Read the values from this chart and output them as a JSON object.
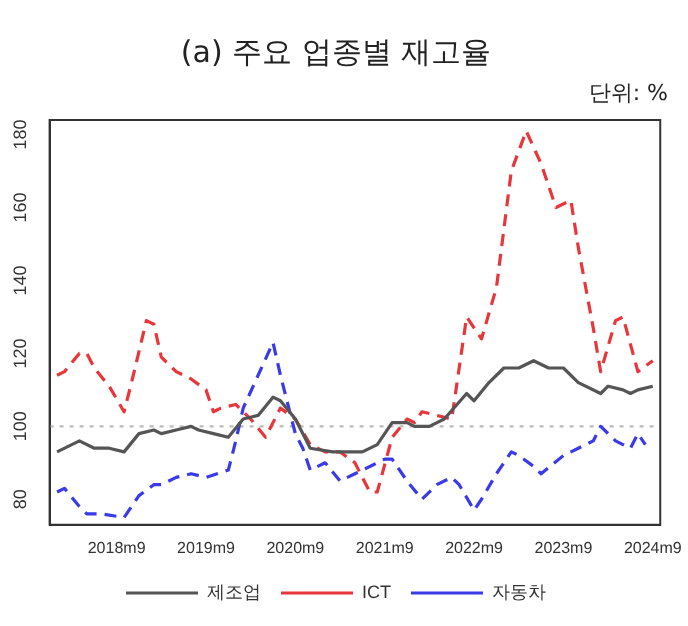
{
  "chart_data": {
    "type": "line",
    "title": "(a) 주요 업종별 재고율",
    "annotations": [
      "단위: %"
    ],
    "xlim": [
      "2017-12",
      "2024-10"
    ],
    "xticks": [
      {
        "value": "2018-09",
        "label": "2018m9"
      },
      {
        "value": "2019-09",
        "label": "2019m9"
      },
      {
        "value": "2020-09",
        "label": "2020m9"
      },
      {
        "value": "2021-09",
        "label": "2021m9"
      },
      {
        "value": "2022-09",
        "label": "2022m9"
      },
      {
        "value": "2023-09",
        "label": "2023m9"
      },
      {
        "value": "2024-09",
        "label": "2024m9"
      }
    ],
    "ylim": [
      73,
      184
    ],
    "yticks": [
      80,
      100,
      120,
      140,
      160,
      180
    ],
    "grid": false,
    "legend": "bottom",
    "marker": "none",
    "ref_lines": [
      {
        "axis": "y",
        "value": 100,
        "color": "#bbbbbb",
        "line_style": "dotted"
      }
    ],
    "series": [
      {
        "name": "제조업",
        "color": "#555555",
        "line_style": "solid",
        "x": [
          "2018-01",
          "2018-04",
          "2018-06",
          "2018-08",
          "2018-10",
          "2018-12",
          "2019-02",
          "2019-03",
          "2019-05",
          "2019-07",
          "2019-08",
          "2019-10",
          "2019-12",
          "2020-02",
          "2020-04",
          "2020-06",
          "2020-07",
          "2020-09",
          "2020-11",
          "2021-02",
          "2021-04",
          "2021-06",
          "2021-08",
          "2021-10",
          "2021-12",
          "2022-01",
          "2022-03",
          "2022-05",
          "2022-08",
          "2022-09",
          "2022-11",
          "2023-01",
          "2023-03",
          "2023-05",
          "2023-07",
          "2023-09",
          "2023-11",
          "2024-02",
          "2024-03",
          "2024-05",
          "2024-06",
          "2024-07",
          "2024-09"
        ],
        "values": [
          93,
          96,
          94,
          94,
          93,
          98,
          99,
          98,
          99,
          100,
          99,
          98,
          97,
          102,
          103,
          108,
          107,
          102,
          94,
          93,
          93,
          93,
          95,
          101,
          101,
          100,
          100,
          102,
          109,
          107,
          112,
          116,
          116,
          118,
          116,
          116,
          112,
          109,
          111,
          110,
          109,
          110,
          111
        ]
      },
      {
        "name": "ICT",
        "color": "#e8363a",
        "line_style": "dashed",
        "x": [
          "2018-01",
          "2018-02",
          "2018-04",
          "2018-05",
          "2018-06",
          "2018-08",
          "2018-10",
          "2018-11",
          "2019-01",
          "2019-02",
          "2019-03",
          "2019-05",
          "2019-07",
          "2019-09",
          "2019-10",
          "2019-11",
          "2020-01",
          "2020-03",
          "2020-05",
          "2020-07",
          "2020-09",
          "2020-11",
          "2021-01",
          "2021-03",
          "2021-05",
          "2021-07",
          "2021-08",
          "2021-10",
          "2021-12",
          "2022-01",
          "2022-02",
          "2022-04",
          "2022-06",
          "2022-08",
          "2022-10",
          "2022-12",
          "2023-02",
          "2023-04",
          "2023-06",
          "2023-08",
          "2023-10",
          "2023-11",
          "2024-01",
          "2024-02",
          "2024-04",
          "2024-05",
          "2024-07",
          "2024-09"
        ],
        "values": [
          114,
          115,
          120,
          120,
          116,
          111,
          104,
          112,
          129,
          128,
          119,
          115,
          113,
          110,
          104,
          105,
          106,
          102,
          97,
          105,
          102,
          95,
          93,
          93,
          90,
          82,
          82,
          97,
          102,
          101,
          104,
          103,
          102,
          130,
          124,
          138,
          170,
          181,
          172,
          160,
          162,
          149,
          127,
          115,
          129,
          130,
          115,
          118
        ]
      },
      {
        "name": "자동차",
        "color": "#3a3ae8",
        "line_style": "dashed",
        "x": [
          "2018-01",
          "2018-02",
          "2018-04",
          "2018-05",
          "2018-07",
          "2018-10",
          "2018-12",
          "2019-02",
          "2019-03",
          "2019-05",
          "2019-07",
          "2019-09",
          "2019-12",
          "2020-01",
          "2020-02",
          "2020-04",
          "2020-06",
          "2020-07",
          "2020-09",
          "2020-10",
          "2020-11",
          "2021-01",
          "2021-03",
          "2021-05",
          "2021-07",
          "2021-09",
          "2021-10",
          "2021-12",
          "2022-02",
          "2022-04",
          "2022-06",
          "2022-07",
          "2022-09",
          "2022-10",
          "2022-12",
          "2023-02",
          "2023-03",
          "2023-05",
          "2023-06",
          "2023-09",
          "2023-11",
          "2024-01",
          "2024-02",
          "2024-04",
          "2024-05",
          "2024-06",
          "2024-07",
          "2024-08"
        ],
        "values": [
          82,
          83,
          78,
          76,
          76,
          75,
          81,
          84,
          84,
          86,
          87,
          86,
          88,
          96,
          105,
          114,
          123,
          114,
          98,
          94,
          88,
          90,
          85,
          87,
          89,
          91,
          91,
          85,
          80,
          84,
          86,
          84,
          77,
          80,
          87,
          93,
          92,
          89,
          87,
          92,
          94,
          96,
          100,
          96,
          95,
          94,
          98,
          95
        ]
      }
    ]
  }
}
